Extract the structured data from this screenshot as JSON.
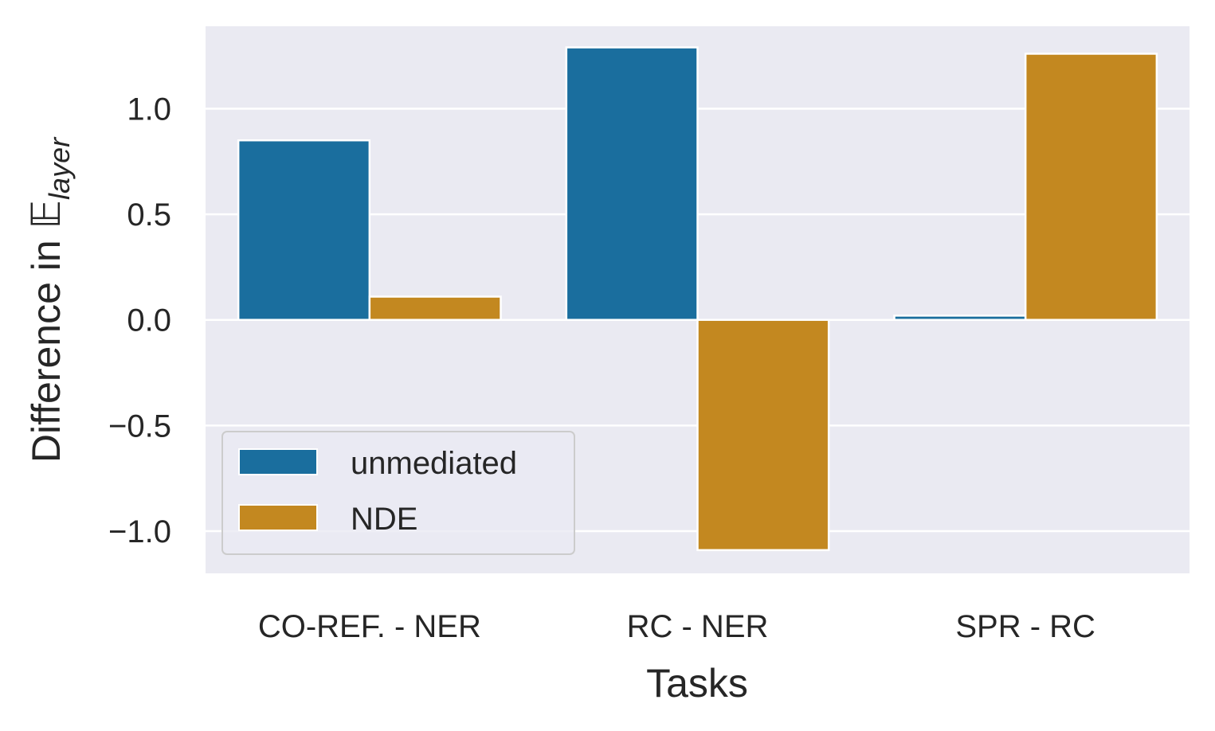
{
  "chart_data": {
    "type": "bar",
    "categories": [
      "CO-REF. - NER",
      "RC - NER",
      "SPR - RC"
    ],
    "series": [
      {
        "name": "unmediated",
        "color": "#1a6e9e",
        "values": [
          0.85,
          1.29,
          0.02
        ]
      },
      {
        "name": "NDE",
        "color": "#c38820",
        "values": [
          0.11,
          -1.09,
          1.26
        ]
      }
    ],
    "xlabel": "Tasks",
    "ylabel": {
      "prefix": "Difference in ",
      "symbol": "𝔼",
      "subscript": "layer"
    },
    "yticks": [
      {
        "value": -1.0,
        "label": "−1.0"
      },
      {
        "value": -0.5,
        "label": "−0.5"
      },
      {
        "value": 0.0,
        "label": "0.0"
      },
      {
        "value": 0.5,
        "label": "0.5"
      },
      {
        "value": 1.0,
        "label": "1.0"
      }
    ],
    "ylim": [
      -1.2,
      1.39
    ],
    "grid": true,
    "legend_position": "lower-left",
    "plot_background": "#eaeaf2"
  }
}
